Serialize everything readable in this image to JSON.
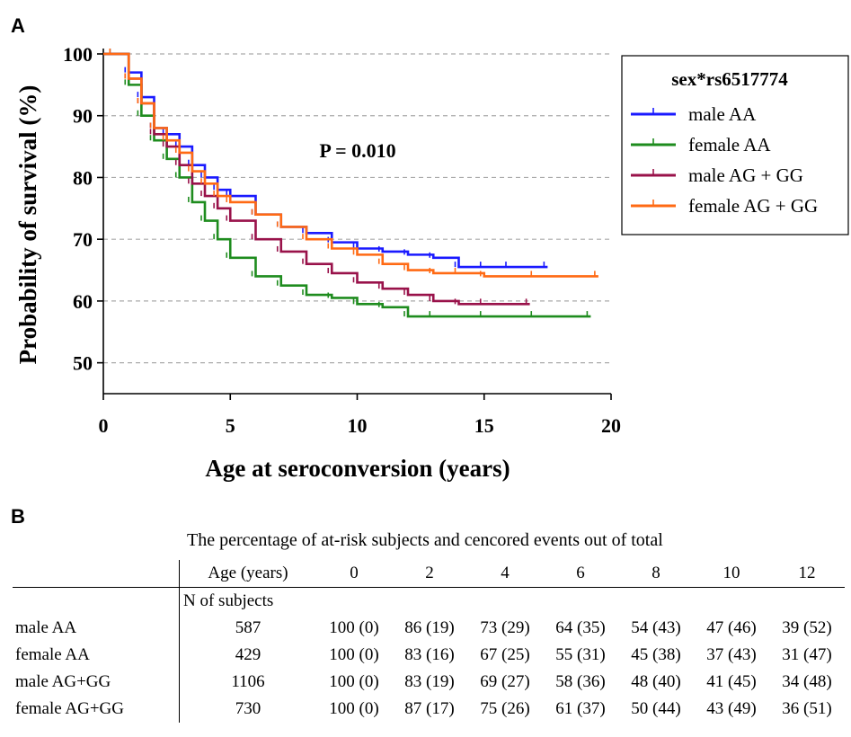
{
  "panel_a_label": "A",
  "panel_b_label": "B",
  "chart_data": {
    "type": "line",
    "subtype": "kaplan-meier",
    "title": "",
    "xlabel": "Age at seroconversion (years)",
    "ylabel": "Probability of survival (%)",
    "xlim": [
      0,
      20
    ],
    "ylim": [
      45,
      100
    ],
    "xticks": [
      0,
      5,
      10,
      15,
      20
    ],
    "yticks": [
      50,
      60,
      70,
      80,
      90,
      100
    ],
    "grid": "horizontal dashed",
    "annotation": "P = 0.010",
    "legend": {
      "title": "sex*rs6517774",
      "position": "right"
    },
    "series": [
      {
        "name": "male AA",
        "color": "#1a1aff",
        "points": [
          [
            0,
            100
          ],
          [
            0.4,
            100
          ],
          [
            1,
            97
          ],
          [
            1.5,
            93
          ],
          [
            2,
            88
          ],
          [
            2.5,
            87
          ],
          [
            3,
            85
          ],
          [
            3.5,
            82
          ],
          [
            4,
            80
          ],
          [
            4.5,
            78
          ],
          [
            5,
            77
          ],
          [
            6,
            74
          ],
          [
            7,
            72
          ],
          [
            8,
            71
          ],
          [
            9,
            69.5
          ],
          [
            10,
            68.5
          ],
          [
            11,
            68
          ],
          [
            12,
            67.5
          ],
          [
            13,
            67
          ],
          [
            14,
            65.5
          ],
          [
            15,
            65.5
          ],
          [
            16,
            65.5
          ],
          [
            17.5,
            65.5
          ]
        ]
      },
      {
        "name": "female AA",
        "color": "#1e8c1e",
        "points": [
          [
            0,
            100
          ],
          [
            0.4,
            100
          ],
          [
            1,
            95
          ],
          [
            1.5,
            90
          ],
          [
            2,
            86
          ],
          [
            2.5,
            83
          ],
          [
            3,
            80
          ],
          [
            3.5,
            76
          ],
          [
            4,
            73
          ],
          [
            4.5,
            70
          ],
          [
            5,
            67
          ],
          [
            6,
            64
          ],
          [
            7,
            62.5
          ],
          [
            8,
            61
          ],
          [
            9,
            60.5
          ],
          [
            10,
            59.5
          ],
          [
            11,
            59
          ],
          [
            12,
            57.5
          ],
          [
            13,
            57.5
          ],
          [
            15,
            57.5
          ],
          [
            17,
            57.5
          ],
          [
            19.2,
            57.5
          ]
        ]
      },
      {
        "name": "male AG + GG",
        "color": "#99124a",
        "points": [
          [
            0,
            100
          ],
          [
            0.4,
            100
          ],
          [
            1,
            96
          ],
          [
            1.5,
            92
          ],
          [
            2,
            87
          ],
          [
            2.5,
            85
          ],
          [
            3,
            82
          ],
          [
            3.5,
            79
          ],
          [
            4,
            77
          ],
          [
            4.5,
            75
          ],
          [
            5,
            73
          ],
          [
            6,
            70
          ],
          [
            7,
            68
          ],
          [
            8,
            66
          ],
          [
            9,
            64.5
          ],
          [
            10,
            63
          ],
          [
            11,
            62
          ],
          [
            12,
            61
          ],
          [
            13,
            60
          ],
          [
            14,
            59.5
          ],
          [
            15,
            59.5
          ],
          [
            16.8,
            59.5
          ]
        ]
      },
      {
        "name": "female AG + GG",
        "color": "#ff6a14",
        "points": [
          [
            0,
            100
          ],
          [
            0.4,
            100
          ],
          [
            1,
            96
          ],
          [
            1.5,
            92
          ],
          [
            2,
            88
          ],
          [
            2.5,
            86
          ],
          [
            3,
            84
          ],
          [
            3.5,
            81
          ],
          [
            4,
            79
          ],
          [
            4.5,
            77
          ],
          [
            5,
            76
          ],
          [
            6,
            74
          ],
          [
            7,
            72
          ],
          [
            8,
            70
          ],
          [
            9,
            68.5
          ],
          [
            10,
            67.5
          ],
          [
            11,
            66
          ],
          [
            12,
            65
          ],
          [
            13,
            64.5
          ],
          [
            14,
            64.5
          ],
          [
            15,
            64
          ],
          [
            17,
            64
          ],
          [
            19.5,
            64
          ]
        ]
      }
    ]
  },
  "risk_table": {
    "title": "The percentage of at-risk subjects and cencored events out of total",
    "age_header": "Age (years)",
    "ages": [
      "0",
      "2",
      "4",
      "6",
      "8",
      "10",
      "12"
    ],
    "n_header": "N of subjects",
    "rows": [
      {
        "label": "male AA",
        "n": "587",
        "values": [
          "100 (0)",
          "86 (19)",
          "73 (29)",
          "64 (35)",
          "54 (43)",
          "47 (46)",
          "39 (52)"
        ]
      },
      {
        "label": "female AA",
        "n": "429",
        "values": [
          "100 (0)",
          "83 (16)",
          "67 (25)",
          "55 (31)",
          "45 (38)",
          "37 (43)",
          "31 (47)"
        ]
      },
      {
        "label": "male AG+GG",
        "n": "1106",
        "values": [
          "100 (0)",
          "83 (19)",
          "69 (27)",
          "58 (36)",
          "48 (40)",
          "41 (45)",
          "34 (48)"
        ]
      },
      {
        "label": "female AG+GG",
        "n": "730",
        "values": [
          "100 (0)",
          "87 (17)",
          "75 (26)",
          "61 (37)",
          "50 (44)",
          "43 (49)",
          "36 (51)"
        ]
      }
    ]
  }
}
